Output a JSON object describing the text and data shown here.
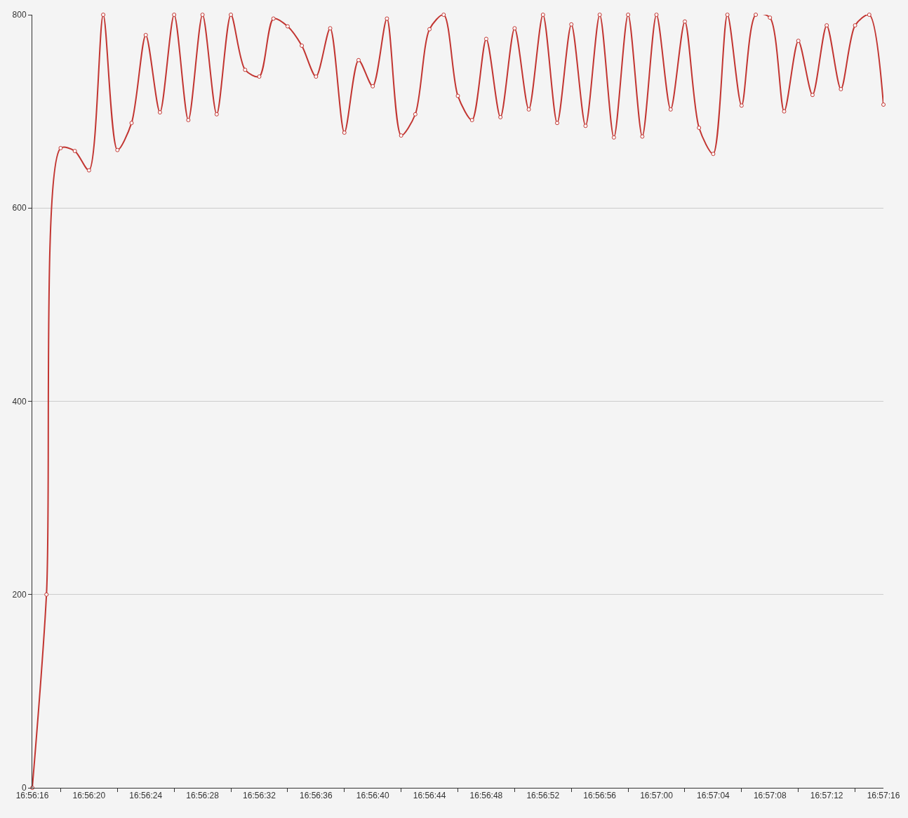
{
  "chart_data": {
    "type": "line",
    "categories": [
      "16:56:16",
      null,
      null,
      null,
      "16:56:20",
      null,
      null,
      null,
      "16:56:24",
      null,
      null,
      null,
      "16:56:28",
      null,
      null,
      null,
      "16:56:32",
      null,
      null,
      null,
      "16:56:36",
      null,
      null,
      null,
      "16:56:40",
      null,
      null,
      null,
      "16:56:44",
      null,
      null,
      null,
      "16:56:48",
      null,
      null,
      null,
      "16:56:52",
      null,
      null,
      null,
      "16:56:56",
      null,
      null,
      null,
      "16:57:00",
      null,
      null,
      null,
      "16:57:04",
      null,
      null,
      null,
      "16:57:08",
      null,
      null,
      null,
      "16:57:12",
      null,
      null,
      null,
      "16:57:16"
    ],
    "series": [
      {
        "color": "#c23531",
        "values": [
          0,
          200,
          662,
          659,
          639,
          800,
          660,
          688,
          779,
          699,
          800,
          691,
          800,
          697,
          800,
          743,
          736,
          796,
          788,
          768,
          736,
          786,
          678,
          753,
          726,
          796,
          675,
          697,
          785,
          800,
          716,
          691,
          775,
          694,
          786,
          702,
          800,
          688,
          790,
          685,
          800,
          673,
          800,
          674,
          800,
          702,
          793,
          683,
          656,
          800,
          706,
          800,
          797,
          700,
          773,
          717,
          789,
          723,
          789,
          800,
          707
        ]
      }
    ],
    "ylim": [
      0,
      800
    ],
    "yticks": [
      0,
      200,
      400,
      600,
      800
    ],
    "grid": "y",
    "marker": "circle",
    "line_style": "solid"
  }
}
